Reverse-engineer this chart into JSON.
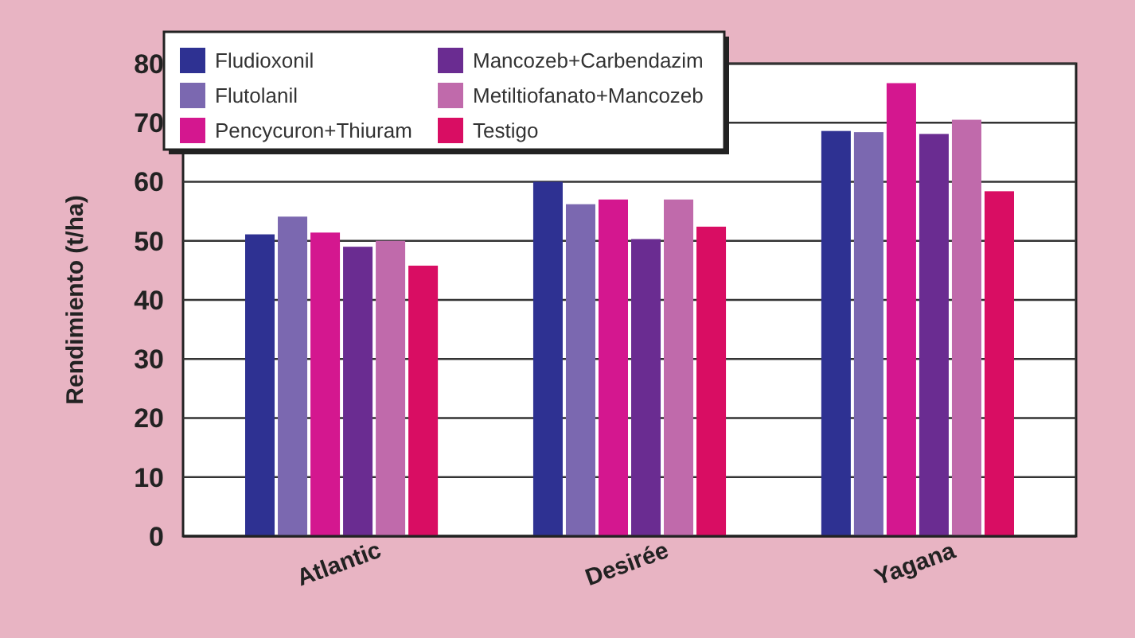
{
  "chart_data": {
    "type": "bar",
    "ylabel": "Rendimiento (t/ha)",
    "categories": [
      "Atlantic",
      "Desirée",
      "Yagana"
    ],
    "series": [
      {
        "name": "Fludioxonil",
        "color": "#2e3192",
        "values": [
          51.1,
          60,
          68.6
        ]
      },
      {
        "name": "Flutolanil",
        "color": "#7b68b0",
        "values": [
          54.1,
          56.2,
          68.4
        ]
      },
      {
        "name": "Pencycuron+Thiuram",
        "color": "#d4178f",
        "values": [
          51.4,
          57,
          76.7
        ]
      },
      {
        "name": "Mancozeb+Carbendazim",
        "color": "#6a2c91",
        "values": [
          49,
          50.3,
          68.1
        ]
      },
      {
        "name": "Metiltiofanato+Mancozeb",
        "color": "#c06aab",
        "values": [
          50,
          57,
          70.5
        ]
      },
      {
        "name": "Testigo",
        "color": "#d90d63",
        "values": [
          45.8,
          52.4,
          58.4
        ]
      }
    ],
    "ylim": [
      0,
      80
    ],
    "yticks": [
      0,
      10,
      20,
      30,
      40,
      50,
      60,
      70,
      80
    ],
    "grid": "y",
    "legend": "top left"
  }
}
